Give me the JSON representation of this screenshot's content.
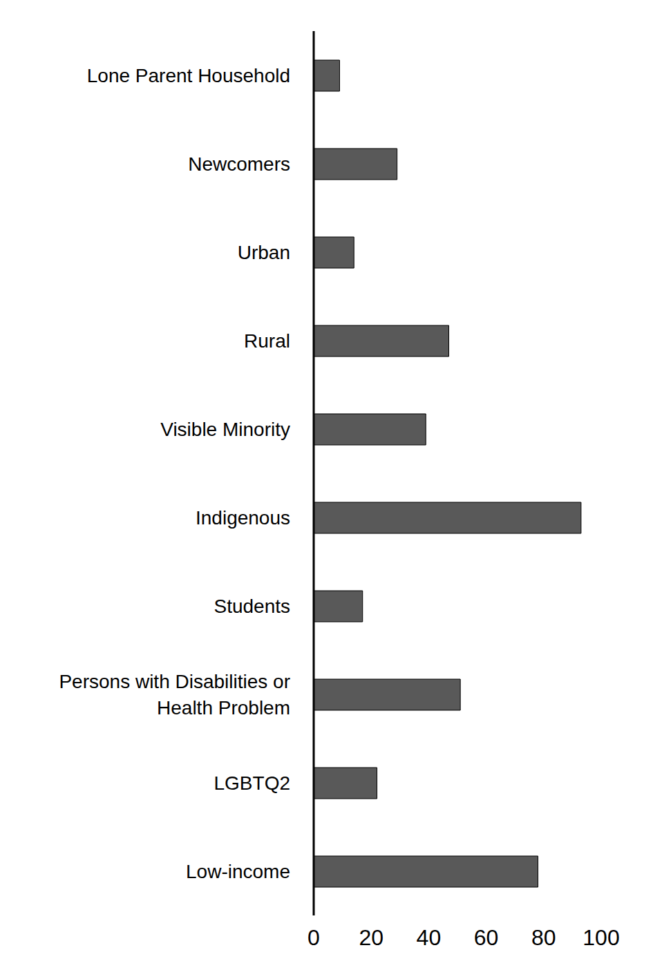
{
  "chart_data": {
    "type": "bar",
    "orientation": "horizontal",
    "categories": [
      "Lone Parent Household",
      "Newcomers",
      "Urban",
      "Rural",
      "Visible Minority",
      "Indigenous",
      "Students",
      "Persons with Disabilities or Health Problem",
      "LGBTQ2",
      "Low-income"
    ],
    "values": [
      9,
      29,
      14,
      47,
      39,
      93,
      17,
      51,
      22,
      78
    ],
    "color": "#595959",
    "xlim": [
      0,
      100
    ],
    "xticks": [
      0,
      20,
      40,
      60,
      80,
      100
    ],
    "grid": false
  }
}
